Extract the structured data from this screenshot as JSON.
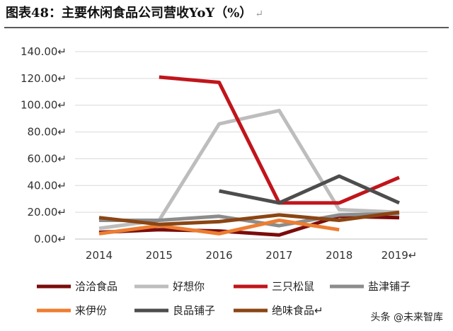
{
  "title": "图表48：主要休闲食品公司营收YoY（%）",
  "return_mark": "↵",
  "watermark": "头条 @未来智库",
  "chart_data": {
    "type": "line",
    "title": "图表48：主要休闲食品公司营收YoY（%）",
    "xlabel": "",
    "ylabel": "",
    "categories": [
      "2014",
      "2015",
      "2016",
      "2017",
      "2018",
      "2019"
    ],
    "ylim": [
      0,
      140
    ],
    "yticks": [
      "0.00",
      "20.00",
      "40.00",
      "60.00",
      "80.00",
      "100.00",
      "120.00",
      "140.00"
    ],
    "grid": "horizontal",
    "legend_position": "bottom",
    "series": [
      {
        "name": "洽洽食品",
        "color": "#7b0c0c",
        "values": [
          5,
          7,
          6,
          3,
          17,
          16
        ]
      },
      {
        "name": "好想你",
        "color": "#bdbdbd",
        "values": [
          8,
          14,
          86,
          96,
          22,
          20
        ]
      },
      {
        "name": "三只松鼠",
        "color": "#c0151b",
        "values": [
          null,
          121,
          117,
          27,
          27,
          46
        ]
      },
      {
        "name": "盐津铺子",
        "color": "#8c8c8c",
        "values": [
          14,
          14,
          17,
          10,
          18,
          19
        ]
      },
      {
        "name": "来伊份",
        "color": "#ed7d31",
        "values": [
          4,
          10,
          4,
          14,
          7,
          null
        ]
      },
      {
        "name": "良品铺子",
        "color": "#4d4d4d",
        "values": [
          null,
          null,
          36,
          27,
          47,
          27
        ]
      },
      {
        "name": "绝味食品",
        "color": "#8b4513",
        "values": [
          16,
          11,
          13,
          18,
          14,
          20
        ]
      }
    ]
  }
}
